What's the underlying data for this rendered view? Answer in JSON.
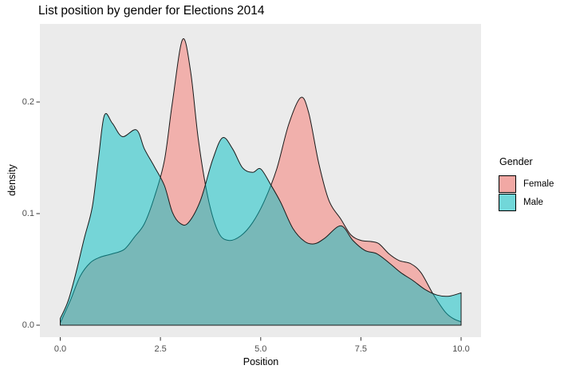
{
  "title": "List position by gender for Elections 2014",
  "colors": {
    "panel_background": "#EBEBEB",
    "page_background": "#FFFFFF",
    "female_fill_base": "#F8766D",
    "male_fill_base": "#00BFC4",
    "fill_alpha": 0.5,
    "female_fill_blended": "#F2AEA8",
    "male_fill_blended": "#76D6D8",
    "overlap_blended": "#77B5B5",
    "curve_outline": "#1a1a1a",
    "tick_mark": "#333333",
    "tick_label": "#4d4d4d",
    "legend_swatch_female": "#F1A8A4",
    "legend_swatch_male": "#71D7D9"
  },
  "chart_data": {
    "type": "area",
    "subtype": "density",
    "title": "List position by gender for Elections 2014",
    "xlabel": "Position",
    "ylabel": "density",
    "xlim": [
      0,
      10
    ],
    "ylim": [
      0,
      0.27
    ],
    "grid": "off",
    "legend": {
      "title": "Gender",
      "position": "right",
      "entries": [
        {
          "label": "Female",
          "swatch": "#F1A8A4",
          "base_color": "#F8766D"
        },
        {
          "label": "Male",
          "swatch": "#71D7D9",
          "base_color": "#00BFC4"
        }
      ]
    },
    "x_axis": {
      "ticks": [
        {
          "v": 0,
          "label": "0.0"
        },
        {
          "v": 2.5,
          "label": "2.5"
        },
        {
          "v": 5,
          "label": "5.0"
        },
        {
          "v": 7.5,
          "label": "7.5"
        },
        {
          "v": 10,
          "label": "10.0"
        }
      ]
    },
    "y_axis": {
      "ticks": [
        {
          "v": 0,
          "label": "0.0"
        },
        {
          "v": 0.1,
          "label": "0.1"
        },
        {
          "v": 0.2,
          "label": "0.2"
        }
      ]
    },
    "series": [
      {
        "name": "Female",
        "fill_rgba": "rgba(248,118,109,0.5)",
        "points": [
          [
            0,
            0.002
          ],
          [
            0.25,
            0.022
          ],
          [
            0.5,
            0.044
          ],
          [
            0.75,
            0.056
          ],
          [
            1.0,
            0.061
          ],
          [
            1.3,
            0.064
          ],
          [
            1.6,
            0.068
          ],
          [
            1.85,
            0.079
          ],
          [
            2.1,
            0.091
          ],
          [
            2.35,
            0.115
          ],
          [
            2.6,
            0.148
          ],
          [
            2.8,
            0.2
          ],
          [
            3.05,
            0.256
          ],
          [
            3.25,
            0.228
          ],
          [
            3.45,
            0.165
          ],
          [
            3.7,
            0.112
          ],
          [
            3.95,
            0.083
          ],
          [
            4.2,
            0.076
          ],
          [
            4.5,
            0.08
          ],
          [
            4.8,
            0.092
          ],
          [
            5.1,
            0.112
          ],
          [
            5.4,
            0.14
          ],
          [
            5.7,
            0.18
          ],
          [
            6.0,
            0.204
          ],
          [
            6.2,
            0.19
          ],
          [
            6.45,
            0.145
          ],
          [
            6.7,
            0.112
          ],
          [
            7.0,
            0.095
          ],
          [
            7.25,
            0.081
          ],
          [
            7.5,
            0.076
          ],
          [
            7.75,
            0.075
          ],
          [
            7.95,
            0.073
          ],
          [
            8.2,
            0.064
          ],
          [
            8.45,
            0.058
          ],
          [
            8.75,
            0.055
          ],
          [
            9.0,
            0.047
          ],
          [
            9.3,
            0.028
          ],
          [
            9.6,
            0.012
          ],
          [
            9.8,
            0.006
          ],
          [
            10,
            0.003
          ]
        ]
      },
      {
        "name": "Male",
        "fill_rgba": "rgba(0,191,196,0.5)",
        "points": [
          [
            0,
            0.006
          ],
          [
            0.2,
            0.022
          ],
          [
            0.4,
            0.048
          ],
          [
            0.6,
            0.078
          ],
          [
            0.8,
            0.106
          ],
          [
            0.95,
            0.148
          ],
          [
            1.1,
            0.188
          ],
          [
            1.3,
            0.181
          ],
          [
            1.55,
            0.169
          ],
          [
            1.9,
            0.175
          ],
          [
            2.1,
            0.158
          ],
          [
            2.35,
            0.142
          ],
          [
            2.6,
            0.125
          ],
          [
            2.8,
            0.101
          ],
          [
            3.0,
            0.091
          ],
          [
            3.2,
            0.092
          ],
          [
            3.5,
            0.112
          ],
          [
            3.8,
            0.148
          ],
          [
            4.05,
            0.168
          ],
          [
            4.3,
            0.158
          ],
          [
            4.55,
            0.141
          ],
          [
            4.8,
            0.137
          ],
          [
            5.0,
            0.14
          ],
          [
            5.25,
            0.126
          ],
          [
            5.5,
            0.11
          ],
          [
            5.8,
            0.087
          ],
          [
            6.1,
            0.075
          ],
          [
            6.35,
            0.073
          ],
          [
            6.6,
            0.078
          ],
          [
            7.0,
            0.089
          ],
          [
            7.3,
            0.076
          ],
          [
            7.6,
            0.067
          ],
          [
            7.9,
            0.064
          ],
          [
            8.2,
            0.056
          ],
          [
            8.5,
            0.047
          ],
          [
            8.8,
            0.04
          ],
          [
            9.1,
            0.032
          ],
          [
            9.4,
            0.027
          ],
          [
            9.7,
            0.026
          ],
          [
            10,
            0.029
          ]
        ]
      }
    ]
  }
}
